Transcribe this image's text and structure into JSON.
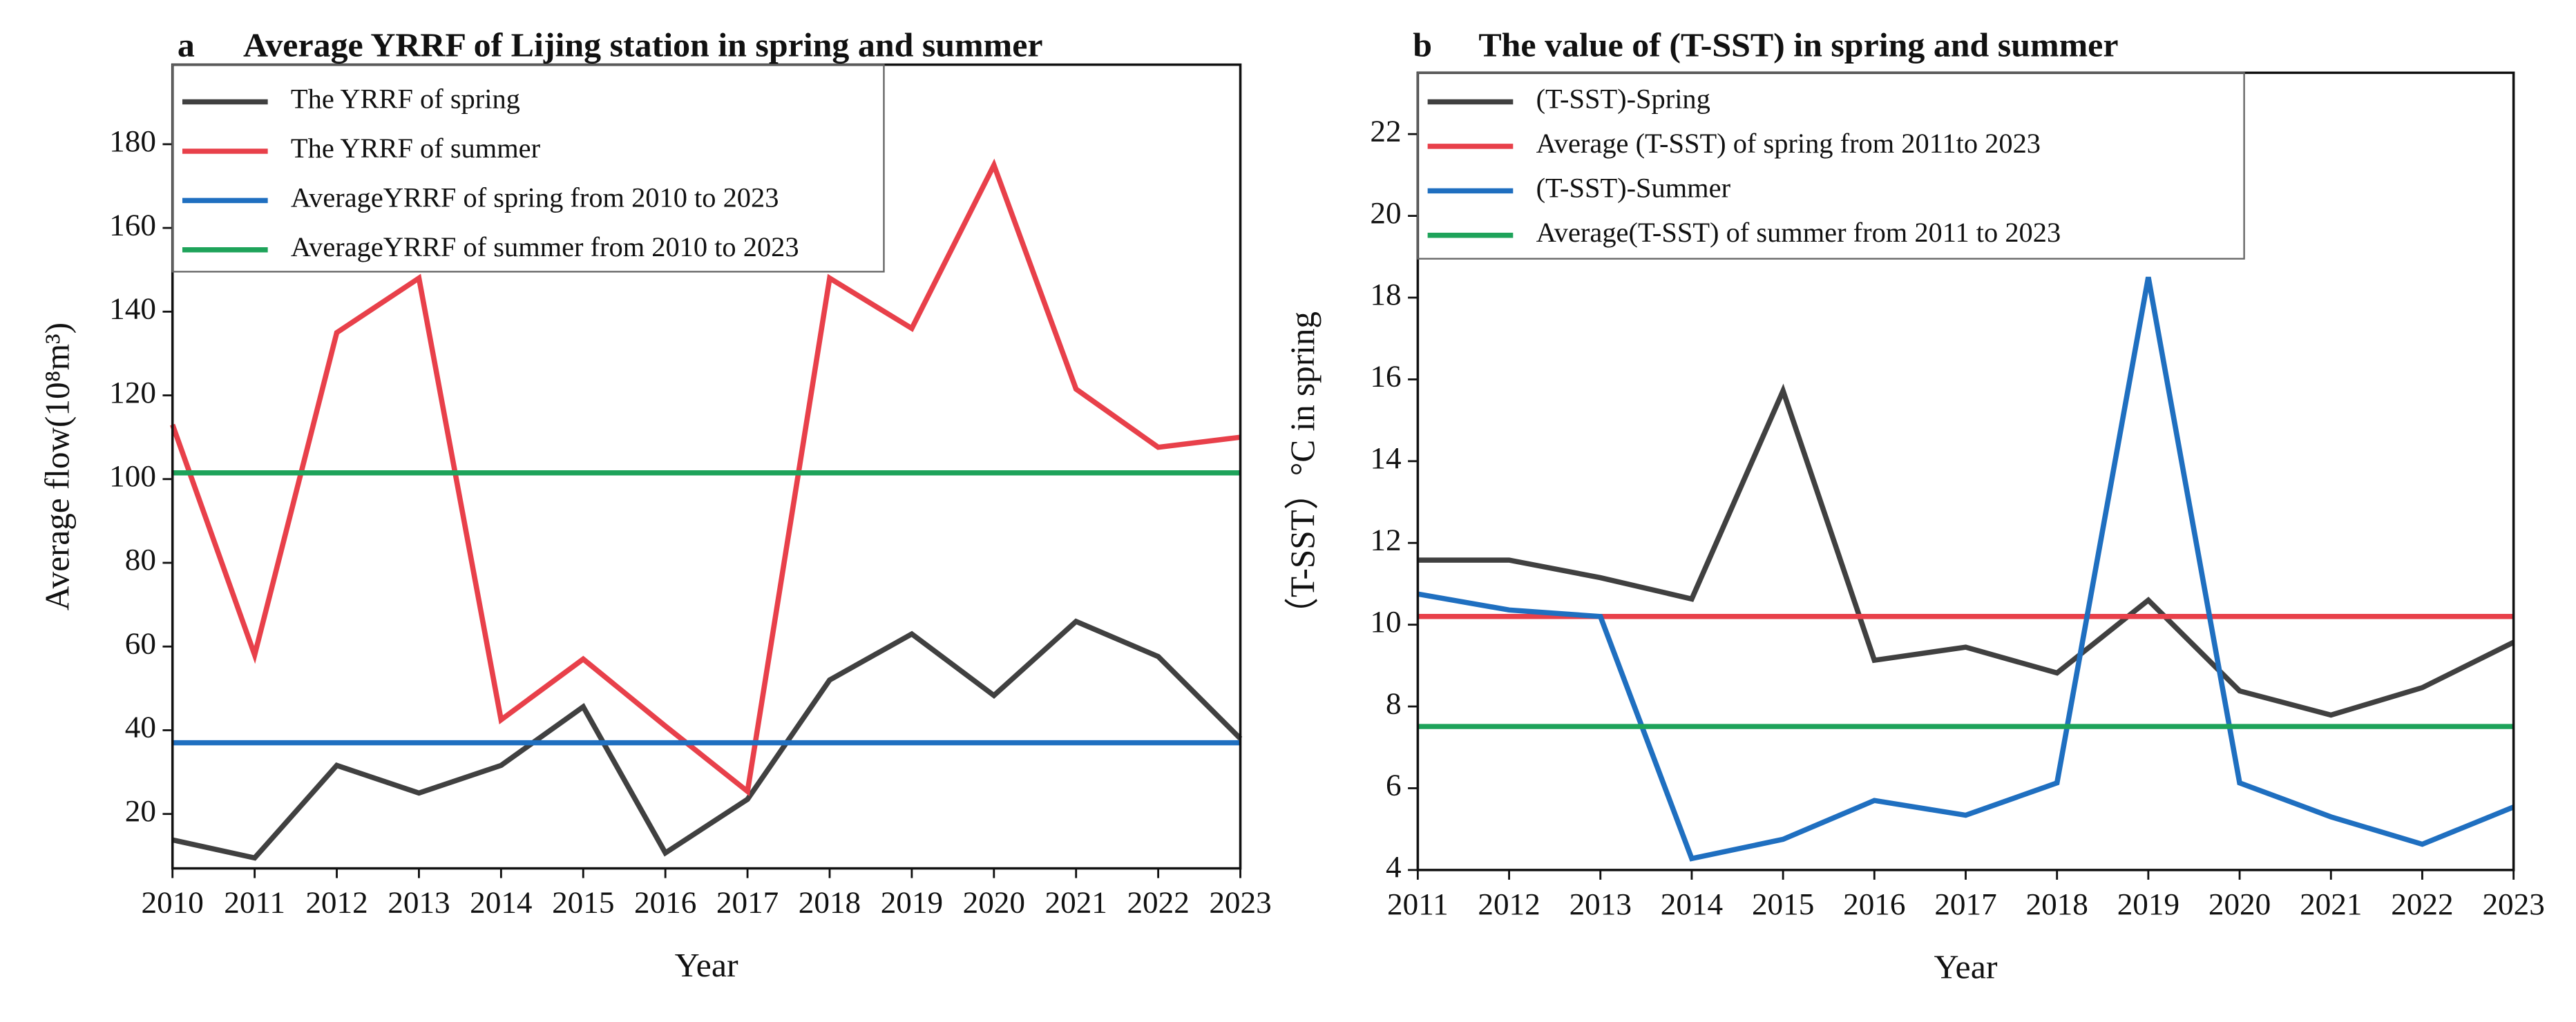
{
  "chart_data": [
    {
      "type": "line",
      "label": "a",
      "title": "Average YRRF of Lijing station in spring and summer",
      "xlabel": "Year",
      "ylabel": "Average flow(10⁸m³)",
      "x": [
        2010,
        2011,
        2012,
        2013,
        2014,
        2015,
        2016,
        2017,
        2018,
        2019,
        2020,
        2021,
        2022,
        2023
      ],
      "xlim": [
        2010,
        2023
      ],
      "xticks": [
        2010,
        2011,
        2012,
        2013,
        2014,
        2015,
        2016,
        2017,
        2018,
        2019,
        2020,
        2021,
        2022,
        2023
      ],
      "ylim": [
        7,
        199
      ],
      "yticks": [
        20,
        40,
        60,
        80,
        100,
        120,
        140,
        160,
        180
      ],
      "legend": "upper left",
      "series": [
        {
          "name": "The YRRF of spring",
          "color": "#404040",
          "values": [
            13.8,
            9.5,
            31.6,
            25,
            31.6,
            45.6,
            10.7,
            23.5,
            52,
            63,
            48.3,
            66,
            57.6,
            38
          ]
        },
        {
          "name": "The YRRF of summer",
          "color": "#e8404a",
          "values": [
            113,
            58,
            135,
            148,
            42.5,
            57,
            41,
            25.4,
            148,
            136,
            175,
            121.5,
            107.6,
            110
          ]
        },
        {
          "name": "AverageYRRF of spring from 2010 to 2023",
          "color": "#1f6fc0",
          "value": 37
        },
        {
          "name": "AverageYRRF of summer from 2010 to 2023",
          "color": "#1ea35a",
          "value": 101.5
        }
      ]
    },
    {
      "type": "line",
      "label": "b",
      "title": "The value of (T-SST) in spring and summer",
      "xlabel": "Year",
      "ylabel": "（T-SST）°C in spring",
      "x": [
        2011,
        2012,
        2013,
        2014,
        2015,
        2016,
        2017,
        2018,
        2019,
        2020,
        2021,
        2022,
        2023
      ],
      "xlim": [
        2011,
        2023
      ],
      "xticks": [
        2011,
        2012,
        2013,
        2014,
        2015,
        2016,
        2017,
        2018,
        2019,
        2020,
        2021,
        2022,
        2023
      ],
      "ylim": [
        4,
        23.5
      ],
      "yticks": [
        4,
        6,
        8,
        10,
        12,
        14,
        16,
        18,
        20,
        22
      ],
      "legend": "upper left",
      "series": [
        {
          "name": "(T-SST)-Spring",
          "color": "#404040",
          "values": [
            11.58,
            11.58,
            11.15,
            10.63,
            15.72,
            9.13,
            9.45,
            8.82,
            10.6,
            8.38,
            7.79,
            8.46,
            9.57
          ]
        },
        {
          "name": "Average (T-SST) of spring from 2011to 2023",
          "color": "#e8404a",
          "value": 10.2
        },
        {
          "name": "(T-SST)-Summer",
          "color": "#1f6fc0",
          "values": [
            10.75,
            10.36,
            10.2,
            4.28,
            4.75,
            5.7,
            5.34,
            6.13,
            18.5,
            6.13,
            5.3,
            4.63,
            5.54
          ]
        },
        {
          "name": "Average(T-SST) of summer from 2011 to 2023",
          "color": "#1ea35a",
          "value": 7.51
        }
      ]
    }
  ]
}
